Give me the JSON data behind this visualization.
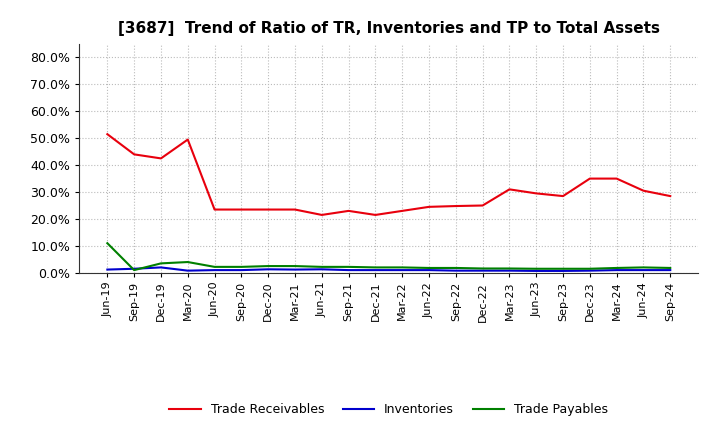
{
  "title": "[3687]  Trend of Ratio of TR, Inventories and TP to Total Assets",
  "x_labels": [
    "Jun-19",
    "Sep-19",
    "Dec-19",
    "Mar-20",
    "Jun-20",
    "Sep-20",
    "Dec-20",
    "Mar-21",
    "Jun-21",
    "Sep-21",
    "Dec-21",
    "Mar-22",
    "Jun-22",
    "Sep-22",
    "Dec-22",
    "Mar-23",
    "Jun-23",
    "Sep-23",
    "Dec-23",
    "Mar-24",
    "Jun-24",
    "Sep-24"
  ],
  "trade_receivables": [
    0.515,
    0.44,
    0.425,
    0.495,
    0.235,
    0.235,
    0.235,
    0.235,
    0.215,
    0.23,
    0.215,
    0.23,
    0.245,
    0.248,
    0.25,
    0.31,
    0.295,
    0.285,
    0.35,
    0.35,
    0.305,
    0.285
  ],
  "inventories": [
    0.012,
    0.015,
    0.02,
    0.008,
    0.01,
    0.01,
    0.013,
    0.012,
    0.013,
    0.01,
    0.01,
    0.01,
    0.01,
    0.008,
    0.008,
    0.008,
    0.007,
    0.007,
    0.008,
    0.01,
    0.01,
    0.01
  ],
  "trade_payables": [
    0.11,
    0.01,
    0.035,
    0.04,
    0.022,
    0.022,
    0.025,
    0.025,
    0.022,
    0.022,
    0.02,
    0.02,
    0.018,
    0.018,
    0.016,
    0.016,
    0.015,
    0.015,
    0.015,
    0.018,
    0.02,
    0.018
  ],
  "tr_color": "#e8000d",
  "inv_color": "#0000cd",
  "tp_color": "#008000",
  "ylim": [
    0.0,
    0.85
  ],
  "yticks": [
    0.0,
    0.1,
    0.2,
    0.3,
    0.4,
    0.5,
    0.6,
    0.7,
    0.8
  ],
  "ytick_labels": [
    "0.0%",
    "10.0%",
    "20.0%",
    "30.0%",
    "40.0%",
    "50.0%",
    "60.0%",
    "70.0%",
    "80.0%"
  ],
  "legend_labels": [
    "Trade Receivables",
    "Inventories",
    "Trade Payables"
  ],
  "background_color": "#ffffff",
  "grid_color": "#bbbbbb"
}
